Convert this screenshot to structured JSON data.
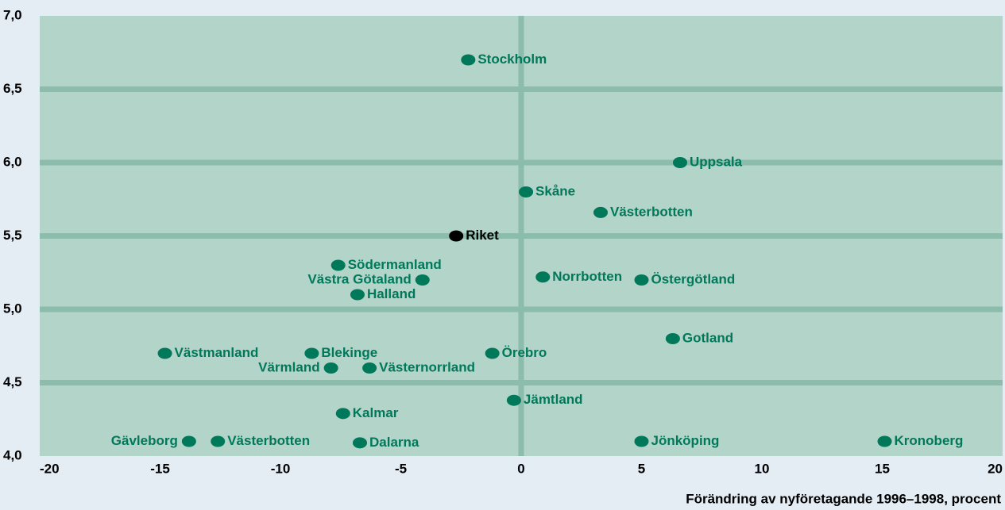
{
  "chart_data": {
    "type": "scatter",
    "x_label": "Förändring av nyföretagande 1996–1998, procent",
    "xlim": [
      -20,
      20
    ],
    "xticks": [
      -20,
      -15,
      -10,
      -5,
      0,
      5,
      10,
      15,
      20
    ],
    "ylim": [
      4,
      7
    ],
    "yticks": [
      {
        "value": 4,
        "label": "4,0"
      },
      {
        "value": 4.5,
        "label": "4,5"
      },
      {
        "value": 5,
        "label": "5,0"
      },
      {
        "value": 5.5,
        "label": "5,5"
      },
      {
        "value": 6,
        "label": "6,0"
      },
      {
        "value": 6.5,
        "label": "6,5"
      },
      {
        "value": 7,
        "label": "7,0"
      }
    ],
    "grid": true,
    "labels": [
      "Stockholm",
      "Uppsala",
      "Skåne",
      "Västerbotten",
      "Riket",
      "Södermanland",
      "Västra Götaland",
      "Halland",
      "Norrbotten",
      "Östergötland",
      "Gotland",
      "Västmanland",
      "Blekinge",
      "Örebro",
      "Värmland",
      "Västernorrland",
      "Jämtland",
      "Kalmar",
      "Gävleborg",
      "Västerbotten",
      "Dalarna",
      "Jönköping",
      "Kronoberg"
    ],
    "x": [
      -2.2,
      6.6,
      0.2,
      3.3,
      -2.7,
      -7.6,
      -4.1,
      -6.8,
      0.9,
      5.0,
      6.3,
      -14.8,
      -8.7,
      -1.2,
      -7.9,
      -6.3,
      -0.3,
      -7.4,
      -13.8,
      -12.6,
      -6.7,
      5.0,
      15.1
    ],
    "values": [
      6.7,
      6.0,
      5.8,
      5.66,
      5.5,
      5.3,
      5.2,
      5.1,
      5.22,
      5.2,
      4.8,
      4.7,
      4.7,
      4.7,
      4.6,
      4.6,
      4.38,
      4.29,
      4.1,
      4.1,
      4.09,
      4.1,
      4.1
    ],
    "colors": [
      "#00785a",
      "#00785a",
      "#00785a",
      "#00785a",
      "#000000",
      "#00785a",
      "#00785a",
      "#00785a",
      "#00785a",
      "#00785a",
      "#00785a",
      "#00785a",
      "#00785a",
      "#00785a",
      "#00785a",
      "#00785a",
      "#00785a",
      "#00785a",
      "#00785a",
      "#00785a",
      "#00785a",
      "#00785a",
      "#00785a"
    ]
  }
}
